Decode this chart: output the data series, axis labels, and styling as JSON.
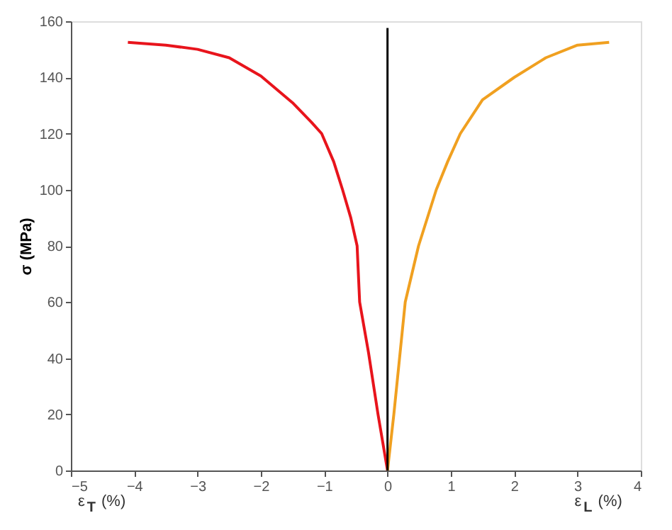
{
  "chart_data": {
    "type": "line",
    "ylabel": "σ (MPa)",
    "annotations": [
      "ε$_{T}$ (%)",
      "ε$_{L}$ (%)"
    ],
    "series": [
      {
        "color": "#e8141c",
        "x": [
          -4.1,
          -3.5,
          -3.0,
          -2.5,
          -2.0,
          -1.5,
          -1.2,
          -1.04,
          -0.85,
          -0.71,
          -0.58,
          -0.48,
          -0.44,
          -0.3,
          -0.15,
          0
        ],
        "values": [
          152.5,
          151.5,
          150,
          147,
          140.5,
          131,
          124,
          120,
          110,
          100,
          90,
          80,
          60,
          42,
          20,
          0
        ]
      },
      {
        "color": "#f0a020",
        "x": [
          0,
          0.1,
          0.28,
          0.49,
          0.77,
          0.95,
          1.15,
          1.5,
          2.0,
          2.5,
          3.0,
          3.5
        ],
        "values": [
          0,
          20,
          60,
          80,
          100,
          110,
          120,
          132,
          140,
          147,
          151.5,
          152.5
        ]
      }
    ],
    "xlim": [
      -5,
      4
    ],
    "xticks": [
      -5,
      -4,
      -3,
      -2,
      -1,
      0,
      1,
      2,
      3,
      4
    ],
    "ylim": [
      0,
      160
    ],
    "yticks": [
      0,
      20,
      40,
      60,
      80,
      100,
      120,
      140,
      160
    ],
    "ref_lines": [
      {
        "axis": "x",
        "value": 0,
        "color": "#000000"
      }
    ],
    "grid": false,
    "marker": "none",
    "line_style": "solid"
  }
}
